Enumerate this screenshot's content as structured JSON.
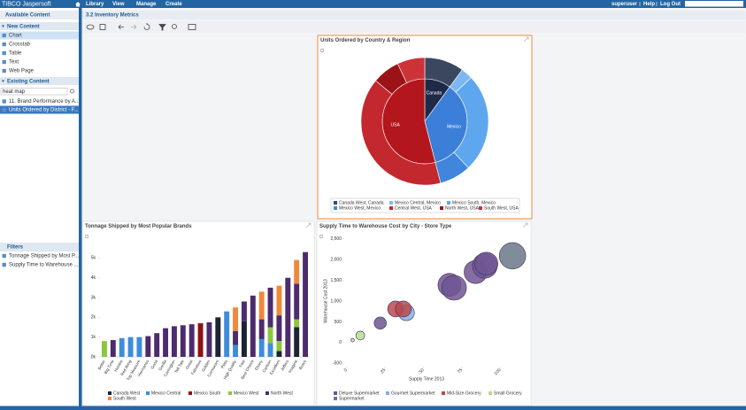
{
  "header": {
    "logo": "TIBCO Jaspersoft",
    "menu": [
      "Library",
      "View",
      "Manage",
      "Create"
    ],
    "user": "superuser",
    "links": [
      "Help",
      "Log Out"
    ]
  },
  "sidebar": {
    "available_title": "Available Content",
    "new_content": {
      "title": "New Content",
      "items": [
        "Chart",
        "Crosstab",
        "Table",
        "Text",
        "Web Page"
      ]
    },
    "existing_content": {
      "title": "Existing Content",
      "search": "heat map",
      "items": [
        "11. Brand Performance by A...",
        "Units Ordered by District - F..."
      ]
    },
    "filters": {
      "title": "Filters",
      "items": [
        "Tonnage Shipped by Most P...",
        "Supply Time to Warehouse ..."
      ]
    }
  },
  "dashboard": {
    "title": "3.2 Inventory Metrics"
  },
  "chart_data": [
    {
      "type": "sunburst",
      "title": "Units Ordered by Country & Region",
      "groups": [
        {
          "name": "Canada",
          "color": "#1e2b47",
          "segments": [
            {
              "name": "Canada West, Canada",
              "color": "#3a475e",
              "value": 10
            }
          ]
        },
        {
          "name": "Mexico",
          "color": "#3c7fd8",
          "segments": [
            {
              "name": "Mexico Central, Mexico",
              "color": "#7db9f0",
              "value": 3
            },
            {
              "name": "Mexico South, Mexico",
              "color": "#5ea6ee",
              "value": 25
            },
            {
              "name": "Mexico West, Mexico",
              "color": "#3f86dc",
              "value": 8
            }
          ]
        },
        {
          "name": "USA",
          "color": "#b3161c",
          "segments": [
            {
              "name": "Central West, USA",
              "color": "#c3282e",
              "value": 40
            },
            {
              "name": "North West, USA",
              "color": "#9b1217",
              "value": 7
            },
            {
              "name": "South West, USA",
              "color": "#cc3338",
              "value": 7
            }
          ]
        }
      ]
    },
    {
      "type": "bar",
      "stacked": true,
      "grid": false,
      "title": "Tonnage Shipped by Most Popular Brands",
      "categories": [
        "Better",
        "Big Time",
        "Horatio",
        "Red Wing",
        "Top Measure",
        "Hermanos",
        "Good",
        "Gorilla",
        "Carrington",
        "Tell Tale",
        "Great",
        "Fabulous",
        "Golden",
        "Cormorant",
        "Plato",
        "High Quality",
        "Fast",
        "Best Choice",
        "Ebony",
        "Carlson",
        "Excellent",
        "Jeffers",
        "Imagine",
        "Bravo"
      ],
      "series": [
        {
          "name": "Canada West",
          "color": "#1c2433",
          "values": [
            0,
            0,
            0,
            0,
            0,
            0,
            0,
            0,
            0,
            0,
            0,
            0,
            0,
            2000,
            0,
            0,
            1800,
            0,
            0,
            0,
            300,
            0,
            1500,
            0
          ]
        },
        {
          "name": "Mexico Central",
          "color": "#3d8ddb",
          "values": [
            0,
            0,
            950,
            1000,
            1000,
            0,
            0,
            0,
            0,
            0,
            0,
            0,
            0,
            0,
            2300,
            600,
            0,
            0,
            900,
            700,
            0,
            0,
            0,
            0
          ]
        },
        {
          "name": "Mexico South",
          "color": "#8e1212",
          "values": [
            0,
            0,
            0,
            0,
            0,
            0,
            0,
            0,
            0,
            0,
            0,
            1700,
            0,
            0,
            0,
            0,
            0,
            0,
            0,
            0,
            0,
            0,
            0,
            0
          ]
        },
        {
          "name": "Mexico West",
          "color": "#8cc63f",
          "values": [
            800,
            0,
            0,
            0,
            0,
            0,
            0,
            0,
            0,
            0,
            0,
            0,
            0,
            0,
            0,
            0,
            0,
            0,
            0,
            800,
            500,
            0,
            400,
            0
          ]
        },
        {
          "name": "North West",
          "color": "#4d2b6e",
          "values": [
            0,
            850,
            0,
            0,
            0,
            1050,
            1200,
            1450,
            1550,
            1600,
            1650,
            0,
            1750,
            0,
            0,
            700,
            1000,
            3100,
            1000,
            2000,
            1300,
            4000,
            1800,
            5300
          ]
        },
        {
          "name": "South West",
          "color": "#f0883a",
          "values": [
            0,
            0,
            0,
            0,
            0,
            0,
            0,
            0,
            0,
            0,
            0,
            0,
            0,
            0,
            0,
            1200,
            0,
            0,
            1400,
            0,
            1500,
            0,
            1200,
            0
          ]
        }
      ],
      "ylim": [
        0,
        5600
      ],
      "yticks": [
        {
          "value": 0,
          "label": "0k"
        },
        {
          "value": 1000,
          "label": "1k"
        },
        {
          "value": 2000,
          "label": "2k"
        },
        {
          "value": 3000,
          "label": "3k"
        },
        {
          "value": 4000,
          "label": "4k"
        },
        {
          "value": 5000,
          "label": "5k"
        }
      ]
    },
    {
      "type": "bubble",
      "grid": false,
      "title": "Supply Time to Warehouse Cost by City - Store Type",
      "x_label": "Supply Time 2013",
      "y_label": "Warehouse Cost 2013",
      "series": [
        {
          "name": "Deluxe Supermarket",
          "color": "#6e5592",
          "x": [
            22,
            67,
            70,
            84,
            90,
            91
          ],
          "values": [
            470,
            1390,
            1320,
            1700,
            1850,
            1900
          ],
          "sizes": [
            7,
            25,
            29,
            25,
            29,
            25
          ]
        },
        {
          "name": "Gourmet Supermarket",
          "color": "#86b0e4",
          "x": [
            39
          ],
          "values": [
            720
          ],
          "sizes": [
            12
          ]
        },
        {
          "name": "Mid-Size Grocery",
          "color": "#b84a50",
          "x": [
            32,
            37
          ],
          "values": [
            810,
            810
          ],
          "sizes": [
            12,
            12
          ]
        },
        {
          "name": "Small Grocery",
          "color": "#b9dc8f",
          "x": [
            4,
            9
          ],
          "values": [
            60,
            170
          ],
          "sizes": [
            0.6,
            3.7
          ]
        },
        {
          "name": "Supermarket",
          "color": "#6b7888",
          "x": [
            108
          ],
          "values": [
            2090
          ],
          "sizes": [
            33
          ]
        }
      ],
      "xlim": [
        -2,
        120
      ],
      "xticks": [
        0,
        25,
        50,
        75,
        100
      ],
      "ylim": [
        -600,
        2600
      ],
      "yticks": [
        -500,
        0,
        500,
        {
          "value": 1000,
          "label": "1,000"
        },
        {
          "value": 1500,
          "label": "1,500"
        },
        {
          "value": 2000,
          "label": "2,000"
        },
        {
          "value": 2500,
          "label": "2,500"
        }
      ]
    }
  ]
}
